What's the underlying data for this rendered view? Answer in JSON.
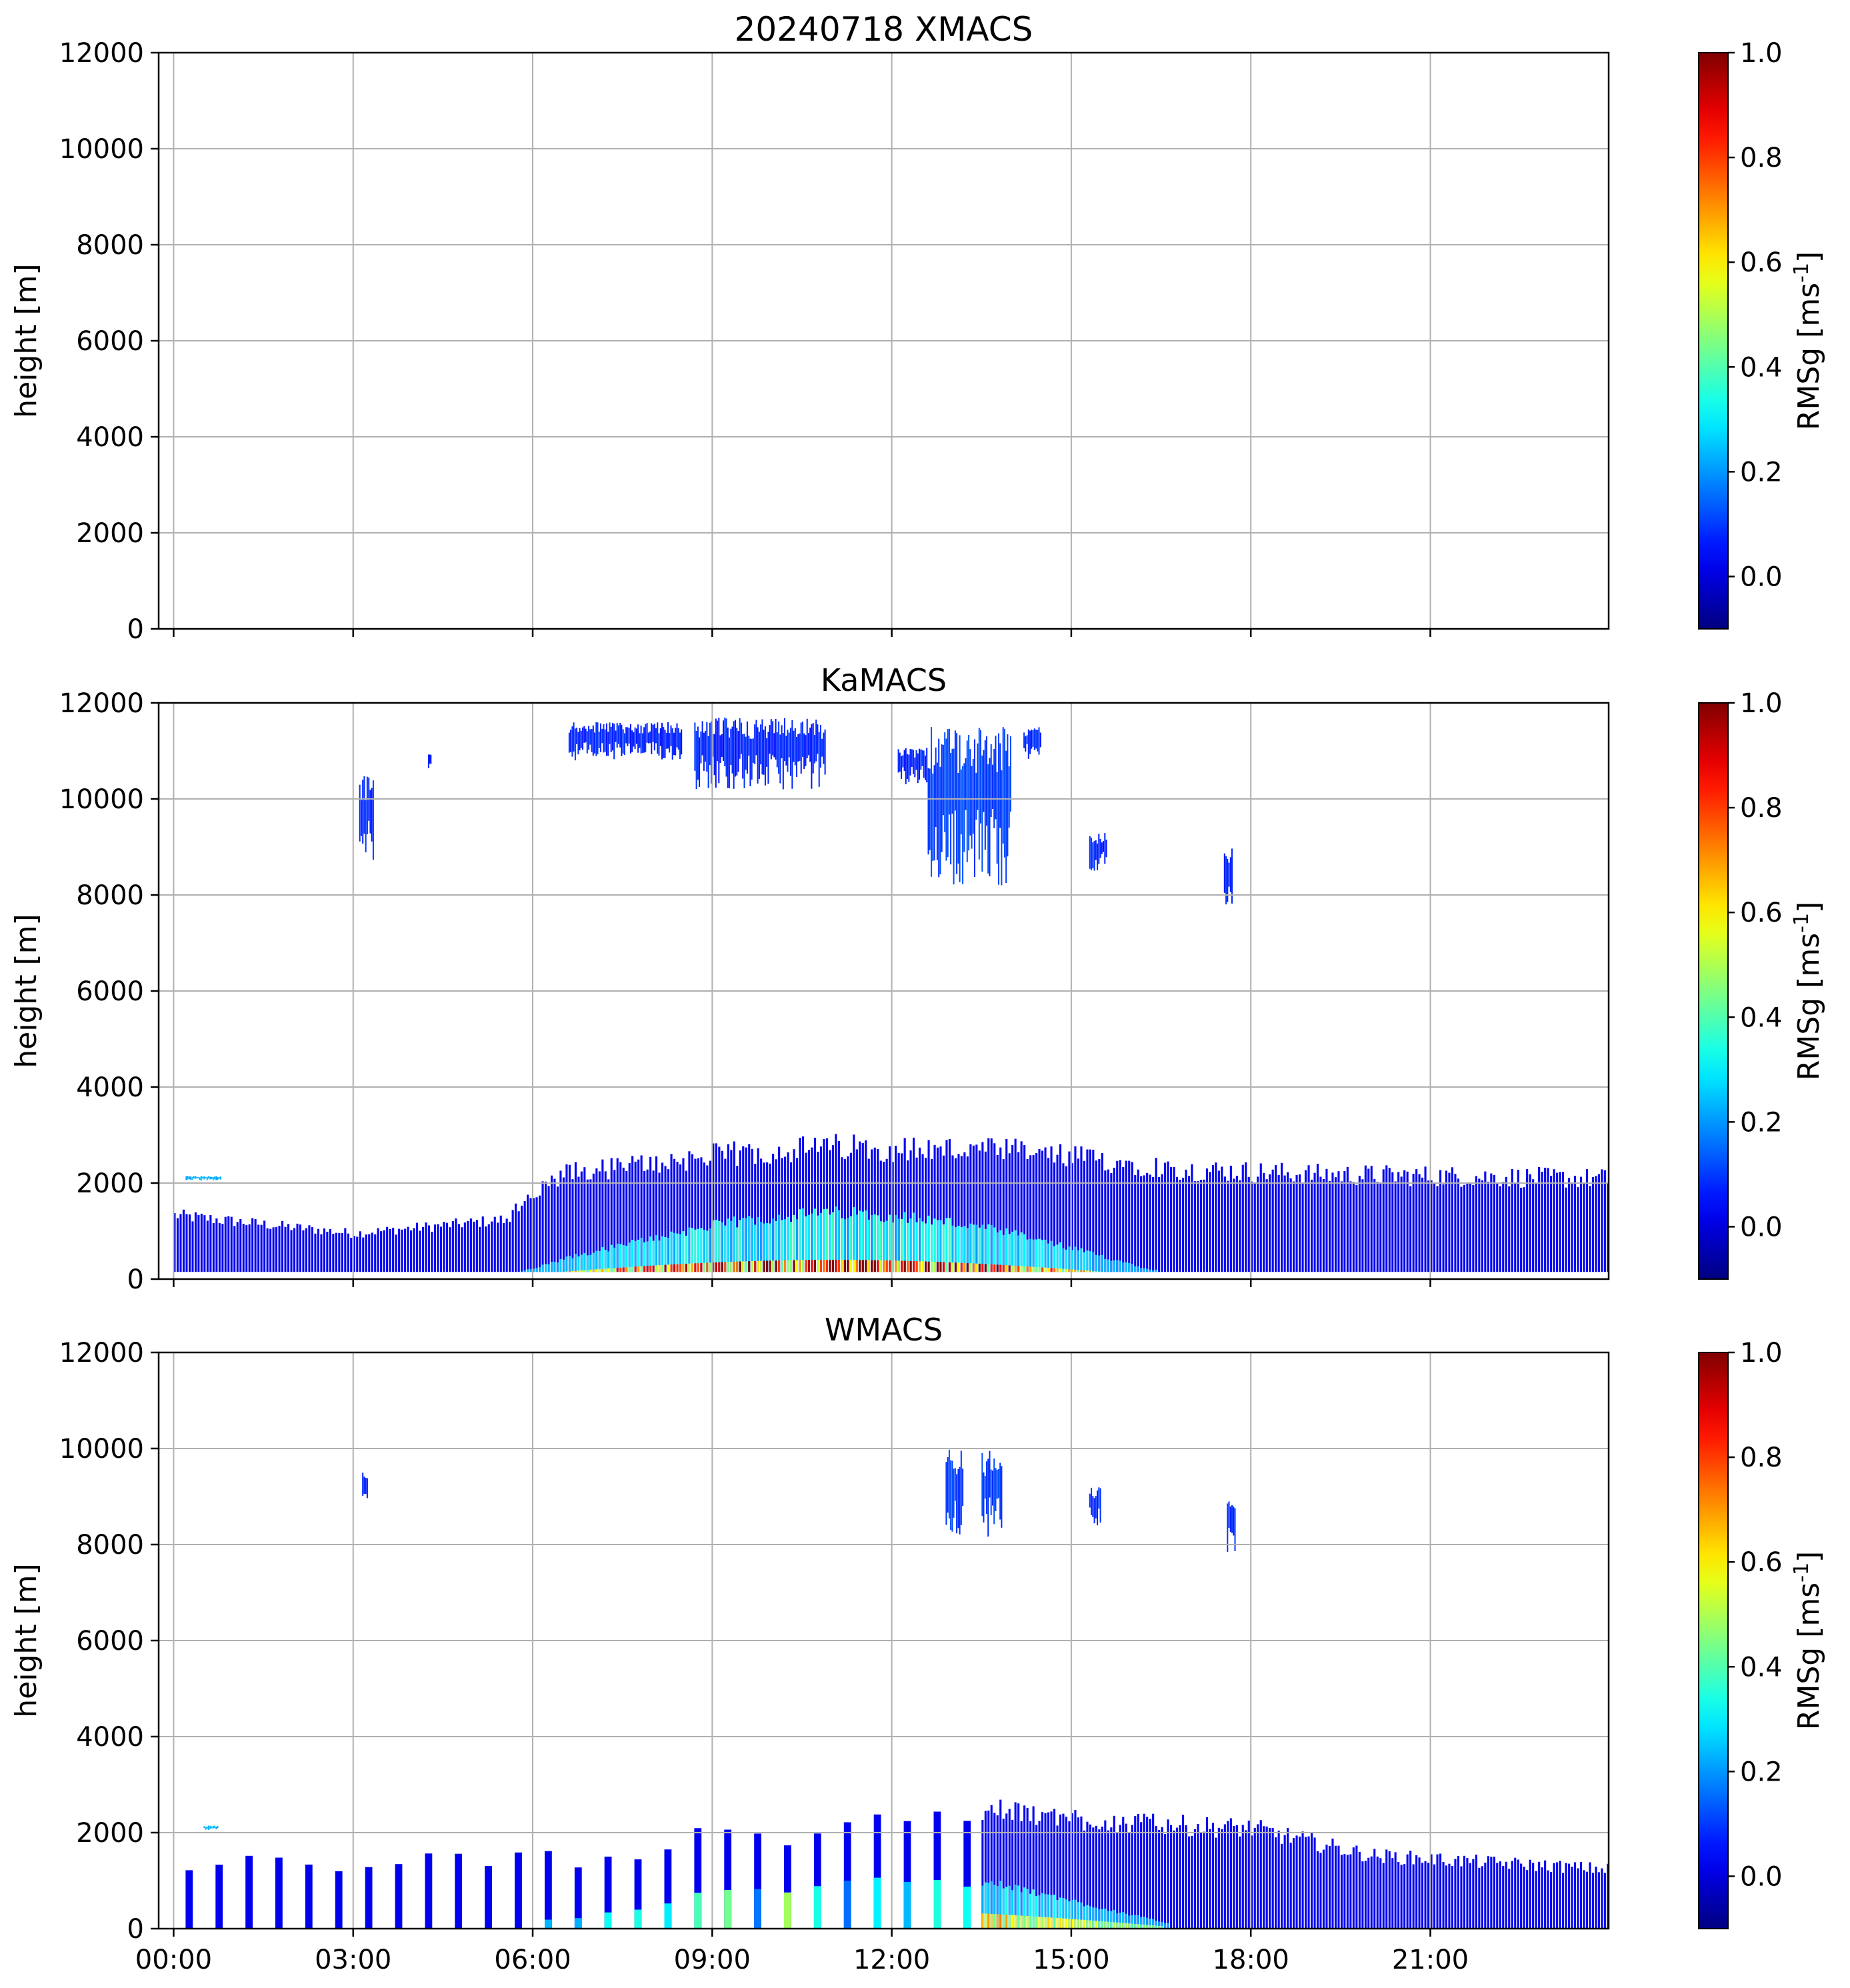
{
  "chart_data": [
    {
      "type": "heatmap",
      "title": "20240718 XMACS",
      "xlabel": "",
      "ylabel": "height [m]",
      "x_tick_labels": [
        "00:00",
        "03:00",
        "06:00",
        "09:00",
        "12:00",
        "15:00",
        "18:00",
        "21:00"
      ],
      "y_tick_labels": [
        "0",
        "2000",
        "4000",
        "6000",
        "8000",
        "10000",
        "12000"
      ],
      "xlim": [
        "23:15",
        "23:59"
      ],
      "ylim": [
        0,
        12000
      ],
      "grid": true,
      "colorbar": {
        "label": "RMSg [ms^-1]",
        "ticks": [
          "0.0",
          "0.2",
          "0.4",
          "0.6",
          "0.8",
          "1.0"
        ],
        "range": [
          -0.1,
          1.0
        ],
        "cmap": "jet"
      },
      "features": []
    },
    {
      "type": "heatmap",
      "title": "KaMACS",
      "xlabel": "",
      "ylabel": "height [m]",
      "x_tick_labels": [
        "00:00",
        "03:00",
        "06:00",
        "09:00",
        "12:00",
        "15:00",
        "18:00",
        "21:00"
      ],
      "y_tick_labels": [
        "0",
        "2000",
        "4000",
        "6000",
        "8000",
        "10000",
        "12000"
      ],
      "xlim": [
        "23:15",
        "23:59"
      ],
      "ylim": [
        0,
        12000
      ],
      "grid": true,
      "colorbar": {
        "label": "RMSg [ms^-1]",
        "ticks": [
          "0.0",
          "0.2",
          "0.4",
          "0.6",
          "0.8",
          "1.0"
        ],
        "range": [
          -0.1,
          1.0
        ],
        "cmap": "jet"
      },
      "features": [
        {
          "kind": "boundary_layer",
          "t_start": 0.0,
          "t_end": 23.99,
          "h_bottom": 150,
          "h_top_profile": [
            [
              0,
              1400
            ],
            [
              3,
              1000
            ],
            [
              5.5,
              1300
            ],
            [
              6.5,
              2300
            ],
            [
              9,
              2700
            ],
            [
              11,
              2900
            ],
            [
              14,
              2800
            ],
            [
              17,
              2400
            ],
            [
              19,
              2300
            ],
            [
              23.99,
              2200
            ]
          ],
          "rms_peak": 0.85
        },
        {
          "kind": "cloud",
          "t_start": 3.1,
          "t_end": 3.35,
          "h_bottom": 8700,
          "h_top": 10500,
          "rms": 0.05
        },
        {
          "kind": "cloud",
          "t_start": 4.25,
          "t_end": 4.3,
          "h_bottom": 10600,
          "h_top": 11000,
          "rms": 0.05
        },
        {
          "kind": "cloud",
          "t_start": 6.6,
          "t_end": 8.5,
          "h_bottom": 10800,
          "h_top": 11600,
          "rms": 0.05
        },
        {
          "kind": "cloud",
          "t_start": 8.7,
          "t_end": 10.9,
          "h_bottom": 10200,
          "h_top": 11700,
          "rms": 0.05
        },
        {
          "kind": "cloud",
          "t_start": 12.1,
          "t_end": 12.6,
          "h_bottom": 10300,
          "h_top": 11100,
          "rms": 0.05
        },
        {
          "kind": "cloud",
          "t_start": 12.6,
          "t_end": 14.0,
          "h_bottom": 8200,
          "h_top": 11500,
          "rms": 0.08
        },
        {
          "kind": "cloud",
          "t_start": 14.2,
          "t_end": 14.5,
          "h_bottom": 10800,
          "h_top": 11500,
          "rms": 0.05
        },
        {
          "kind": "cloud",
          "t_start": 15.3,
          "t_end": 15.6,
          "h_bottom": 8500,
          "h_top": 9300,
          "rms": 0.05
        },
        {
          "kind": "cloud",
          "t_start": 17.55,
          "t_end": 17.7,
          "h_bottom": 7700,
          "h_top": 9000,
          "rms": 0.05
        },
        {
          "kind": "cloud",
          "t_start": 0.2,
          "t_end": 0.8,
          "h_bottom": 2050,
          "h_top": 2150,
          "rms": 0.2
        }
      ]
    },
    {
      "type": "heatmap",
      "title": "WMACS",
      "xlabel": "",
      "ylabel": "height [m]",
      "x_tick_labels": [
        "00:00",
        "03:00",
        "06:00",
        "09:00",
        "12:00",
        "15:00",
        "18:00",
        "21:00"
      ],
      "y_tick_labels": [
        "0",
        "2000",
        "4000",
        "6000",
        "8000",
        "10000",
        "12000"
      ],
      "xlim": [
        "23:15",
        "23:59"
      ],
      "ylim": [
        0,
        12000
      ],
      "grid": true,
      "colorbar": {
        "label": "RMSg [ms^-1]",
        "ticks": [
          "0.0",
          "0.2",
          "0.4",
          "0.6",
          "0.8",
          "1.0"
        ],
        "range": [
          -0.1,
          1.0
        ],
        "cmap": "jet"
      },
      "features": [
        {
          "kind": "scan_columns",
          "t_start": 0.0,
          "t_end": 13.5,
          "period_h": 0.5,
          "width_h": 0.12,
          "h_top_profile": [
            [
              0,
              1400
            ],
            [
              6,
              1500
            ],
            [
              9,
              2000
            ],
            [
              11,
              2300
            ],
            [
              13.5,
              2500
            ]
          ],
          "rms_peak": 0.4
        },
        {
          "kind": "boundary_layer",
          "t_start": 13.5,
          "t_end": 23.99,
          "h_bottom": 0,
          "h_top_profile": [
            [
              13.5,
              2600
            ],
            [
              16,
              2300
            ],
            [
              18,
              2200
            ],
            [
              20,
              1600
            ],
            [
              23.99,
              1300
            ]
          ],
          "rms_peak": 0.45
        },
        {
          "kind": "cloud",
          "t_start": 3.15,
          "t_end": 3.25,
          "h_bottom": 8800,
          "h_top": 9600,
          "rms": 0.05
        },
        {
          "kind": "cloud",
          "t_start": 12.9,
          "t_end": 13.2,
          "h_bottom": 8200,
          "h_top": 10000,
          "rms": 0.08
        },
        {
          "kind": "cloud",
          "t_start": 13.5,
          "t_end": 13.85,
          "h_bottom": 8000,
          "h_top": 10000,
          "rms": 0.08
        },
        {
          "kind": "cloud",
          "t_start": 15.3,
          "t_end": 15.5,
          "h_bottom": 8400,
          "h_top": 9200,
          "rms": 0.05
        },
        {
          "kind": "cloud",
          "t_start": 17.6,
          "t_end": 17.75,
          "h_bottom": 7800,
          "h_top": 8900,
          "rms": 0.05
        },
        {
          "kind": "cloud",
          "t_start": 0.5,
          "t_end": 0.75,
          "h_bottom": 2050,
          "h_top": 2150,
          "rms": 0.2
        }
      ]
    }
  ]
}
